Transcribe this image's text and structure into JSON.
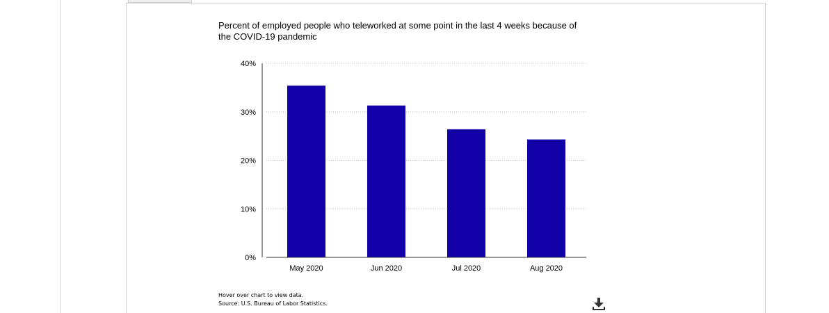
{
  "chart_data": {
    "type": "bar",
    "title": "Percent of employed people who teleworked at some point in the last 4 weeks because of the COVID-19 pandemic",
    "categories": [
      "May 2020",
      "Jun 2020",
      "Jul 2020",
      "Aug 2020"
    ],
    "values": [
      35.4,
      31.3,
      26.4,
      24.3
    ],
    "unit": "%",
    "ylim": [
      0,
      40
    ],
    "yticks": [
      "0%",
      "10%",
      "20%",
      "30%",
      "40%"
    ],
    "xlabel": "",
    "ylabel": "",
    "grid": true,
    "legend": "none",
    "bar_color": "#1200a8"
  },
  "notes": {
    "hover": "Hover over chart to view data.",
    "source": "Source: U.S. Bureau of Labor Statistics."
  },
  "icons": {
    "download": "download-icon"
  }
}
